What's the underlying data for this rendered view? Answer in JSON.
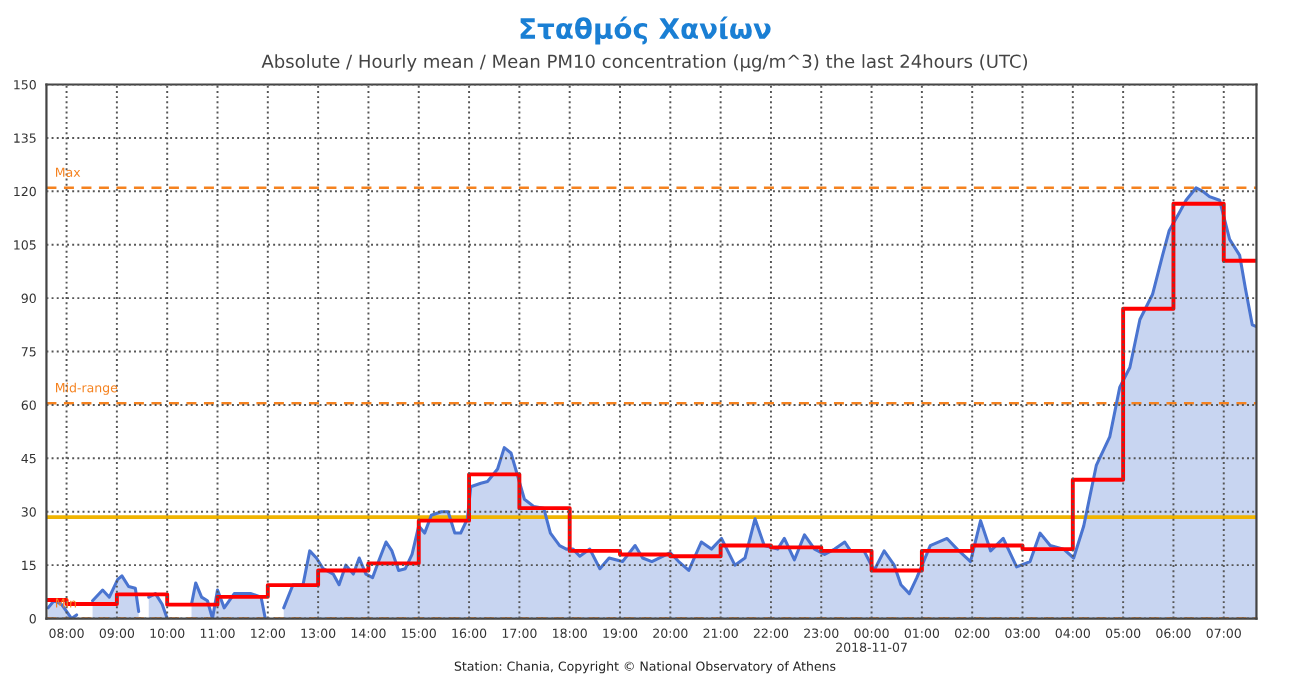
{
  "chart_data": {
    "type": "area",
    "title": "Σταθμός Χανίων",
    "subtitle": "Absolute / Hourly mean / Mean PM10 concentration (µg/m^3) the last 24hours (UTC)",
    "annotations": [
      "Station: Chania, Copyright © National Observatory of Athens"
    ],
    "xlim": [
      "2018-11-06T07:36",
      "2018-11-07T07:39"
    ],
    "xticks": [
      {
        "value": "2018-11-06T08:00",
        "label": "08:00"
      },
      {
        "value": "2018-11-06T09:00",
        "label": "09:00"
      },
      {
        "value": "2018-11-06T10:00",
        "label": "10:00"
      },
      {
        "value": "2018-11-06T11:00",
        "label": "11:00"
      },
      {
        "value": "2018-11-06T12:00",
        "label": "12:00"
      },
      {
        "value": "2018-11-06T13:00",
        "label": "13:00"
      },
      {
        "value": "2018-11-06T14:00",
        "label": "14:00"
      },
      {
        "value": "2018-11-06T15:00",
        "label": "15:00"
      },
      {
        "value": "2018-11-06T16:00",
        "label": "16:00"
      },
      {
        "value": "2018-11-06T17:00",
        "label": "17:00"
      },
      {
        "value": "2018-11-06T18:00",
        "label": "18:00"
      },
      {
        "value": "2018-11-06T19:00",
        "label": "19:00"
      },
      {
        "value": "2018-11-06T20:00",
        "label": "20:00"
      },
      {
        "value": "2018-11-06T21:00",
        "label": "21:00"
      },
      {
        "value": "2018-11-06T22:00",
        "label": "22:00"
      },
      {
        "value": "2018-11-06T23:00",
        "label": "23:00"
      },
      {
        "value": "2018-11-07T00:00",
        "label": "00:00\n2018-11-07"
      },
      {
        "value": "2018-11-07T01:00",
        "label": "01:00"
      },
      {
        "value": "2018-11-07T02:00",
        "label": "02:00"
      },
      {
        "value": "2018-11-07T03:00",
        "label": "03:00"
      },
      {
        "value": "2018-11-07T04:00",
        "label": "04:00"
      },
      {
        "value": "2018-11-07T05:00",
        "label": "05:00"
      },
      {
        "value": "2018-11-07T06:00",
        "label": "06:00"
      },
      {
        "value": "2018-11-07T07:00",
        "label": "07:00"
      }
    ],
    "ylim": [
      0,
      150
    ],
    "yticks": [
      0,
      15,
      30,
      45,
      60,
      75,
      90,
      105,
      120,
      135,
      150
    ],
    "grid": true,
    "series": [
      {
        "color": "#4a74d0",
        "x": [
          "2018-11-06T07:38",
          "2018-11-06T07:45",
          "2018-11-06T07:54",
          "2018-11-06T08:00",
          "2018-11-06T08:06",
          "2018-11-06T08:12",
          "2018-11-06T08:21",
          "2018-11-06T08:31",
          "2018-11-06T08:43",
          "2018-11-06T08:51",
          "2018-11-06T09:01",
          "2018-11-06T09:06",
          "2018-11-06T09:14",
          "2018-11-06T09:22",
          "2018-11-06T09:26",
          "2018-11-06T09:33",
          "2018-11-06T09:38",
          "2018-11-06T09:46",
          "2018-11-06T09:54",
          "2018-11-06T10:00",
          "2018-11-06T10:07",
          "2018-11-06T10:13",
          "2018-11-06T10:18",
          "2018-11-06T10:24",
          "2018-11-06T10:29",
          "2018-11-06T10:34",
          "2018-11-06T10:41",
          "2018-11-06T10:48",
          "2018-11-06T10:54",
          "2018-11-06T11:00",
          "2018-11-06T11:08",
          "2018-11-06T11:20",
          "2018-11-06T11:40",
          "2018-11-06T11:52",
          "2018-11-06T11:57",
          "2018-11-06T12:09",
          "2018-11-06T12:19",
          "2018-11-06T12:30",
          "2018-11-06T12:42",
          "2018-11-06T12:50",
          "2018-11-06T12:58",
          "2018-11-06T13:06",
          "2018-11-06T13:18",
          "2018-11-06T13:25",
          "2018-11-06T13:33",
          "2018-11-06T13:42",
          "2018-11-06T13:49",
          "2018-11-06T13:57",
          "2018-11-06T14:05",
          "2018-11-06T14:12",
          "2018-11-06T14:21",
          "2018-11-06T14:28",
          "2018-11-06T14:36",
          "2018-11-06T14:44",
          "2018-11-06T14:52",
          "2018-11-06T15:00",
          "2018-11-06T15:07",
          "2018-11-06T15:15",
          "2018-11-06T15:27",
          "2018-11-06T15:35",
          "2018-11-06T15:43",
          "2018-11-06T15:50",
          "2018-11-06T15:58",
          "2018-11-06T16:02",
          "2018-11-06T16:14",
          "2018-11-06T16:22",
          "2018-11-06T16:34",
          "2018-11-06T16:42",
          "2018-11-06T16:50",
          "2018-11-06T16:58",
          "2018-11-06T17:06",
          "2018-11-06T17:17",
          "2018-11-06T17:29",
          "2018-11-06T17:37",
          "2018-11-06T17:48",
          "2018-11-06T17:56",
          "2018-11-06T18:04",
          "2018-11-06T18:12",
          "2018-11-06T18:24",
          "2018-11-06T18:36",
          "2018-11-06T18:47",
          "2018-11-06T19:03",
          "2018-11-06T19:18",
          "2018-11-06T19:27",
          "2018-11-06T19:38",
          "2018-11-06T20:00",
          "2018-11-06T20:10",
          "2018-11-06T20:22",
          "2018-11-06T20:37",
          "2018-11-06T20:49",
          "2018-11-06T21:01",
          "2018-11-06T21:17",
          "2018-11-06T21:29",
          "2018-11-06T21:41",
          "2018-11-06T21:52",
          "2018-11-06T22:08",
          "2018-11-06T22:16",
          "2018-11-06T22:28",
          "2018-11-06T22:40",
          "2018-11-06T22:52",
          "2018-11-06T23:04",
          "2018-11-06T23:16",
          "2018-11-06T23:28",
          "2018-11-06T23:35",
          "2018-11-06T23:51",
          "2018-11-07T00:03",
          "2018-11-07T00:15",
          "2018-11-07T00:27",
          "2018-11-07T00:35",
          "2018-11-07T00:45",
          "2018-11-07T00:54",
          "2018-11-07T01:10",
          "2018-11-07T01:30",
          "2018-11-07T01:42",
          "2018-11-07T01:58",
          "2018-11-07T02:10",
          "2018-11-07T02:22",
          "2018-11-07T02:37",
          "2018-11-07T02:53",
          "2018-11-07T03:09",
          "2018-11-07T03:21",
          "2018-11-07T03:33",
          "2018-11-07T03:49",
          "2018-11-07T04:01",
          "2018-11-07T04:13",
          "2018-11-07T04:28",
          "2018-11-07T04:44",
          "2018-11-07T04:56",
          "2018-11-07T05:08",
          "2018-11-07T05:20",
          "2018-11-07T05:35",
          "2018-11-07T05:47",
          "2018-11-07T05:55",
          "2018-11-07T06:07",
          "2018-11-07T06:15",
          "2018-11-07T06:27",
          "2018-11-07T06:35",
          "2018-11-07T06:43",
          "2018-11-07T06:55",
          "2018-11-07T07:07",
          "2018-11-07T07:19",
          "2018-11-07T07:26",
          "2018-11-07T07:34",
          "2018-11-07T07:39"
        ],
        "values": [
          3,
          5,
          4,
          2,
          0,
          1,
          null,
          5,
          8,
          6,
          11,
          12,
          9,
          8.5,
          2,
          null,
          6,
          7,
          4,
          0,
          null,
          null,
          null,
          null,
          4,
          10,
          6,
          5,
          0,
          8,
          3,
          7,
          7,
          6,
          0,
          null,
          3,
          9.5,
          9.5,
          19,
          17,
          14,
          12.5,
          9.5,
          15,
          12.5,
          17,
          12.5,
          11.5,
          16,
          21.5,
          19,
          13.5,
          14,
          18,
          26,
          24,
          29,
          30,
          30,
          24,
          24,
          28,
          37,
          38,
          38.5,
          42,
          48,
          46.5,
          40,
          33.5,
          31.5,
          31,
          24,
          20.5,
          19.5,
          19.5,
          17.5,
          19.5,
          14,
          17,
          16,
          20.5,
          17,
          16,
          18.5,
          16,
          13.5,
          21.5,
          19.5,
          22.5,
          15,
          17,
          28,
          20.5,
          19.5,
          22.5,
          16.5,
          23.5,
          19.5,
          18,
          19.5,
          21.5,
          19,
          19,
          13.5,
          19,
          15,
          9.5,
          7,
          11.5,
          20.5,
          22.5,
          19.5,
          16,
          27.5,
          19,
          22.5,
          14.5,
          16,
          24,
          20.5,
          19.5,
          17,
          26,
          43,
          51,
          65,
          70.5,
          84,
          91,
          102,
          109,
          114,
          117.5,
          121,
          120,
          118.5,
          117.5,
          106.5,
          102,
          92.5,
          82.5,
          82
        ]
      },
      {
        "type": "step",
        "color": "#ff0000",
        "x": [
          "2018-11-06T07:36",
          "2018-11-06T08:00",
          "2018-11-06T09:00",
          "2018-11-06T10:00",
          "2018-11-06T11:00",
          "2018-11-06T12:00",
          "2018-11-06T13:00",
          "2018-11-06T14:00",
          "2018-11-06T15:00",
          "2018-11-06T16:00",
          "2018-11-06T17:00",
          "2018-11-06T18:00",
          "2018-11-06T19:00",
          "2018-11-06T20:00",
          "2018-11-06T21:00",
          "2018-11-06T22:00",
          "2018-11-06T23:00",
          "2018-11-07T00:00",
          "2018-11-07T01:00",
          "2018-11-07T02:00",
          "2018-11-07T03:00",
          "2018-11-07T04:00",
          "2018-11-07T05:00",
          "2018-11-07T06:00",
          "2018-11-07T07:00",
          "2018-11-07T07:39"
        ],
        "values": [
          5.2,
          4.1,
          6.8,
          3.9,
          6.1,
          9.4,
          13.5,
          15.5,
          27.5,
          40.5,
          31,
          19,
          18,
          17.5,
          20.5,
          20,
          19,
          13.5,
          19,
          20.5,
          19.5,
          39,
          87,
          116.5,
          100.5,
          100.5
        ]
      }
    ],
    "ref_lines": [
      {
        "axis": "y",
        "value": 121,
        "label": "Max",
        "color": "#f5821f",
        "line_style": "dashed"
      },
      {
        "axis": "y",
        "value": 60.5,
        "label": "Mid-range",
        "color": "#f5821f",
        "line_style": "dashed"
      },
      {
        "axis": "y",
        "value": 0,
        "label": "Min",
        "color": "#f5821f",
        "line_style": "dashed"
      },
      {
        "axis": "y",
        "value": 28.5,
        "color": "#f0b400",
        "line_style": "solid"
      }
    ]
  }
}
